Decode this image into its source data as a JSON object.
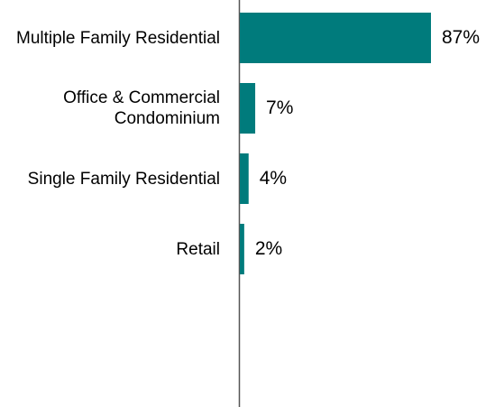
{
  "chart_data": {
    "type": "bar",
    "orientation": "horizontal",
    "categories": [
      "Multiple Family Residential",
      "Office & Commercial Condominium",
      "Single Family Residential",
      "Retail"
    ],
    "values": [
      87,
      7,
      4,
      2
    ],
    "value_labels": [
      "87%",
      "7%",
      "4%",
      "2%"
    ],
    "color": "#007b7c"
  }
}
